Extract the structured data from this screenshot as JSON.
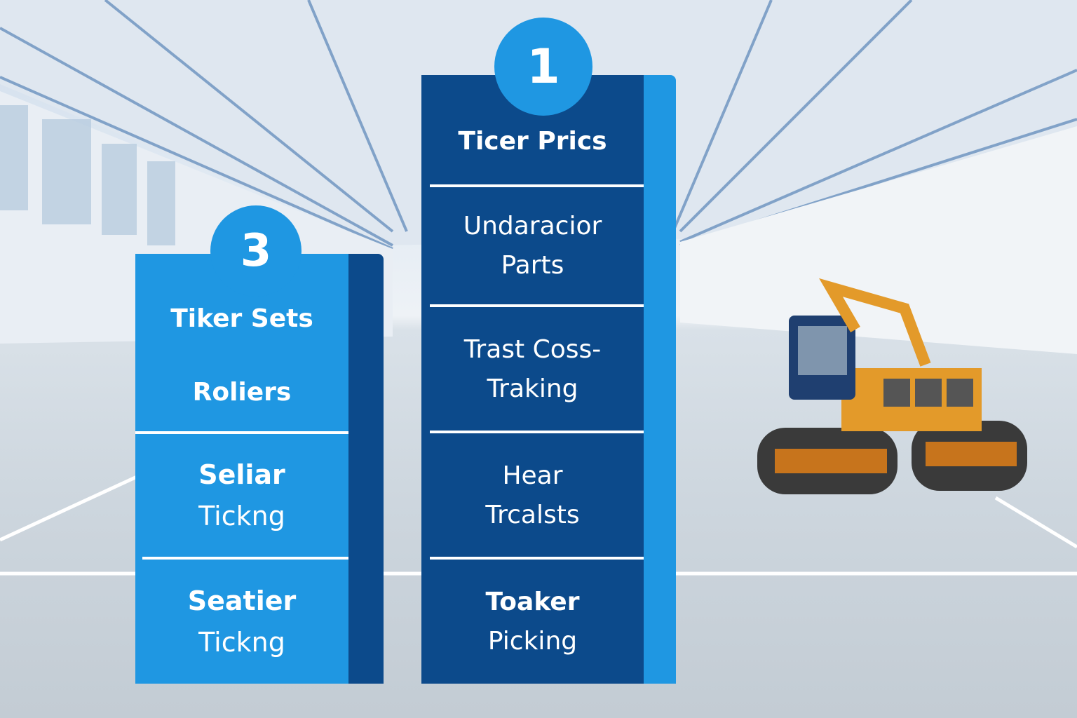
{
  "colors": {
    "light_blue": "#1f97e2",
    "dark_blue": "#0c4a8b",
    "excavator": "#e39a2a"
  },
  "panel_3": {
    "number": "3",
    "title": "Tiker Sets",
    "subtitle": "Roliers",
    "items": [
      {
        "line1": "Seliar",
        "line2": "Tickng"
      },
      {
        "line1": "Seatier",
        "line2": "Tickng"
      }
    ]
  },
  "panel_1": {
    "number": "1",
    "title": "Ticer Prics",
    "items": [
      {
        "line1": "Undaracior",
        "line2": "Parts"
      },
      {
        "line1": "Trast Coss-",
        "line2": "Traking"
      },
      {
        "line1": "Hear",
        "line2": "Trcalsts"
      },
      {
        "line1": "Toaker",
        "line2": "Picking"
      }
    ]
  }
}
